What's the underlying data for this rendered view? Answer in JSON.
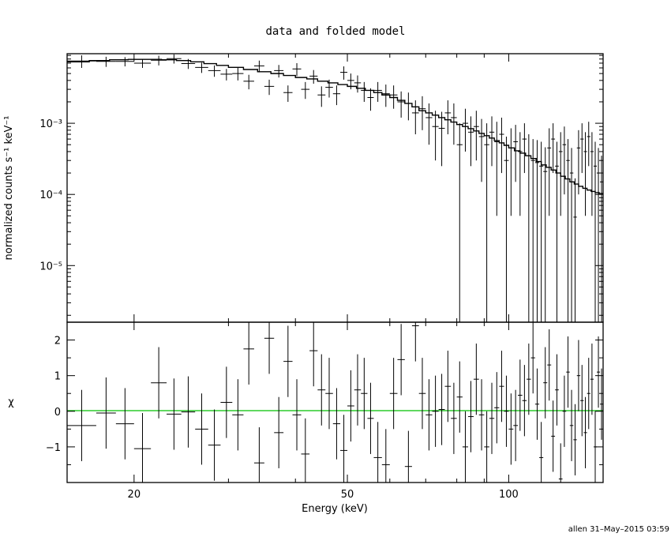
{
  "chart_data": [
    {
      "type": "scatter",
      "title": "data and folded model",
      "xlabel": "Energy (keV)",
      "ylabel": "normalized counts s⁻¹ keV⁻¹",
      "x_scale": "log",
      "y_scale": "log",
      "xlim": [
        15,
        150
      ],
      "ylim": [
        1.6e-06,
        0.0095
      ],
      "x_ticks": [
        {
          "value": 20,
          "label": "20"
        },
        {
          "value": 50,
          "label": "50"
        },
        {
          "value": 100,
          "label": "100"
        }
      ],
      "y_ticks": [
        {
          "value": 0.001,
          "label": "10⁻³"
        },
        {
          "value": 0.0001,
          "label": "10⁻⁴"
        },
        {
          "value": 1e-05,
          "label": "10⁻⁵"
        }
      ],
      "grid": false,
      "legend": "none",
      "series": [
        {
          "role": "data",
          "x_lo": [
            15.0,
            17.0,
            18.5,
            20.0,
            21.5,
            23.0,
            24.5,
            26.0,
            27.5,
            29.0,
            30.5,
            32.0,
            33.5,
            35.0,
            36.5,
            38.0,
            39.5,
            41.0,
            42.5,
            44.0,
            45.5,
            47.0,
            48.5,
            50.0,
            51.5,
            53.0,
            54.5,
            56.0,
            58.0,
            60.0,
            62.0,
            64.0,
            66.0,
            68.0,
            70.0,
            72.0,
            74.0,
            76.0,
            78.0,
            80.0,
            82.0,
            84.0,
            86.0,
            88.0,
            90.0,
            92.0,
            94.0,
            96.0,
            98.0,
            100.0,
            102.0,
            104.0,
            106.0,
            108.0,
            110.0,
            112.0,
            114.0,
            116.0,
            118.0,
            120.0,
            122.0,
            124.0,
            126.0,
            128.0,
            130.0,
            132.0,
            134.0,
            136.0,
            138.0,
            140.0,
            142.0,
            144.0,
            146.0,
            148.0
          ],
          "x_hi": [
            17.0,
            18.5,
            20.0,
            21.5,
            23.0,
            24.5,
            26.0,
            27.5,
            29.0,
            30.5,
            32.0,
            33.5,
            35.0,
            36.5,
            38.0,
            39.5,
            41.0,
            42.5,
            44.0,
            45.5,
            47.0,
            48.5,
            50.0,
            51.5,
            53.0,
            54.5,
            56.0,
            58.0,
            60.0,
            62.0,
            64.0,
            66.0,
            68.0,
            70.0,
            72.0,
            74.0,
            76.0,
            78.0,
            80.0,
            82.0,
            84.0,
            86.0,
            88.0,
            90.0,
            92.0,
            94.0,
            96.0,
            98.0,
            100.0,
            102.0,
            104.0,
            106.0,
            108.0,
            110.0,
            112.0,
            114.0,
            116.0,
            118.0,
            120.0,
            122.0,
            124.0,
            126.0,
            128.0,
            130.0,
            132.0,
            134.0,
            136.0,
            138.0,
            140.0,
            142.0,
            144.0,
            146.0,
            148.0,
            150.0
          ],
          "y": [
            0.0075,
            0.0074,
            0.0074,
            0.007,
            0.0077,
            0.0081,
            0.0069,
            0.0061,
            0.0055,
            0.0049,
            0.005,
            0.0039,
            0.0064,
            0.0033,
            0.0055,
            0.0027,
            0.0058,
            0.003,
            0.0046,
            0.0025,
            0.0032,
            0.0026,
            0.0052,
            0.004,
            0.0037,
            0.0029,
            0.0023,
            0.0029,
            0.0026,
            0.0025,
            0.002,
            0.0019,
            0.0014,
            0.0016,
            0.0012,
            0.0009,
            0.00085,
            0.0014,
            0.0012,
            0.0005,
            0.001,
            0.00075,
            0.0009,
            0.00065,
            0.0005,
            0.00075,
            0.00055,
            0.0007,
            0.0003,
            0.00045,
            0.00055,
            0.0004,
            0.0006,
            0.00035,
            0.0003,
            0.00028,
            0.00025,
            0.00021,
            0.00045,
            0.0006,
            0.00025,
            0.0004,
            0.0005,
            0.0003,
            0.0002,
            4.8e-05,
            0.00045,
            0.0006,
            0.0004,
            0.00065,
            0.0004,
            0.00025,
            0.0002,
            0.00015
          ],
          "y_err": [
            0.0015,
            0.0012,
            0.0011,
            0.001,
            0.0012,
            0.0012,
            0.0011,
            0.001,
            0.001,
            0.0009,
            0.001,
            0.0009,
            0.0012,
            0.0008,
            0.0011,
            0.0007,
            0.0012,
            0.0008,
            0.001,
            0.0008,
            0.0009,
            0.0008,
            0.0011,
            0.001,
            0.001,
            0.0009,
            0.0008,
            0.0009,
            0.0009,
            0.0009,
            0.0008,
            0.0008,
            0.0007,
            0.0008,
            0.0007,
            0.0006,
            0.0006,
            0.0007,
            0.0007,
            0.0005,
            0.0006,
            0.0005,
            0.0006,
            0.0005,
            0.0005,
            0.0005,
            0.0005,
            0.0005,
            0.00035,
            0.0004,
            0.0004,
            0.00035,
            0.0004,
            0.00035,
            0.0003,
            0.0003,
            0.0003,
            0.00025,
            0.0004,
            0.0004,
            0.0003,
            0.00035,
            0.0004,
            0.0003,
            0.00025,
            0.00012,
            0.00035,
            0.0004,
            0.00035,
            0.0004,
            0.00035,
            0.0003,
            0.00025,
            0.0002
          ]
        },
        {
          "role": "model",
          "x": [
            15.0,
            16.5,
            18.0,
            19.5,
            21.0,
            22.5,
            24.0,
            25.5,
            27.0,
            28.5,
            30.0,
            32.0,
            34.0,
            36.0,
            38.0,
            40.0,
            42.0,
            44.0,
            46.0,
            48.0,
            50.0,
            52.0,
            54.0,
            56.0,
            58.0,
            60.0,
            62.0,
            64.0,
            66.0,
            68.0,
            70.0,
            72.0,
            74.0,
            76.0,
            78.0,
            80.0,
            82.0,
            84.0,
            86.0,
            88.0,
            90.0,
            92.0,
            94.0,
            96.0,
            98.0,
            100.0,
            102.5,
            105.0,
            107.5,
            110.0,
            112.5,
            115.0,
            117.5,
            120.0,
            122.5,
            125.0,
            127.5,
            130.0,
            132.5,
            135.0,
            137.5,
            140.0,
            142.5,
            145.0,
            147.5,
            150.0
          ],
          "y": [
            0.0073,
            0.0076,
            0.0078,
            0.0079,
            0.0079,
            0.0078,
            0.0076,
            0.0073,
            0.0069,
            0.0065,
            0.0061,
            0.0057,
            0.0053,
            0.005,
            0.0047,
            0.0044,
            0.0042,
            0.0039,
            0.0037,
            0.0035,
            0.0033,
            0.0031,
            0.0029,
            0.0027,
            0.0025,
            0.0023,
            0.0021,
            0.0019,
            0.0017,
            0.0015,
            0.0014,
            0.0013,
            0.0012,
            0.00112,
            0.00104,
            0.00096,
            0.0009,
            0.00084,
            0.00078,
            0.00072,
            0.00067,
            0.00062,
            0.00057,
            0.00053,
            0.00049,
            0.00045,
            0.00041,
            0.00038,
            0.00035,
            0.00032,
            0.00029,
            0.00026,
            0.00024,
            0.00022,
            0.0002,
            0.00018,
            0.000165,
            0.00015,
            0.00014,
            0.00013,
            0.000122,
            0.000115,
            0.00011,
            0.000106,
            0.000103,
            0.0001
          ]
        }
      ]
    },
    {
      "type": "scatter",
      "ylabel": "χ",
      "xlabel": "Energy (keV)",
      "x_scale": "log",
      "xlim": [
        15,
        150
      ],
      "ylim": [
        -2.0,
        2.5
      ],
      "y_ticks": [
        {
          "value": 2,
          "label": "2"
        },
        {
          "value": 1,
          "label": "1"
        },
        {
          "value": 0,
          "label": "0"
        },
        {
          "value": -1,
          "label": "−1"
        }
      ],
      "reference_line": {
        "y": 0,
        "color": "#00c000"
      },
      "series": [
        {
          "role": "residuals",
          "x_lo": [
            15.0,
            17.0,
            18.5,
            20.0,
            21.5,
            23.0,
            24.5,
            26.0,
            27.5,
            29.0,
            30.5,
            32.0,
            33.5,
            35.0,
            36.5,
            38.0,
            39.5,
            41.0,
            42.5,
            44.0,
            45.5,
            47.0,
            48.5,
            50.0,
            51.5,
            53.0,
            54.5,
            56.0,
            58.0,
            60.0,
            62.0,
            64.0,
            66.0,
            68.0,
            70.0,
            72.0,
            74.0,
            76.0,
            78.0,
            80.0,
            82.0,
            84.0,
            86.0,
            88.0,
            90.0,
            92.0,
            94.0,
            96.0,
            98.0,
            100.0,
            102.0,
            104.0,
            106.0,
            108.0,
            110.0,
            112.0,
            114.0,
            116.0,
            118.0,
            120.0,
            122.0,
            124.0,
            126.0,
            128.0,
            130.0,
            132.0,
            134.0,
            136.0,
            138.0,
            140.0,
            142.0,
            144.0,
            146.0,
            148.0
          ],
          "x_hi": [
            17.0,
            18.5,
            20.0,
            21.5,
            23.0,
            24.5,
            26.0,
            27.5,
            29.0,
            30.5,
            32.0,
            33.5,
            35.0,
            36.5,
            38.0,
            39.5,
            41.0,
            42.5,
            44.0,
            45.5,
            47.0,
            48.5,
            50.0,
            51.5,
            53.0,
            54.5,
            56.0,
            58.0,
            60.0,
            62.0,
            64.0,
            66.0,
            68.0,
            70.0,
            72.0,
            74.0,
            76.0,
            78.0,
            80.0,
            82.0,
            84.0,
            86.0,
            88.0,
            90.0,
            92.0,
            94.0,
            96.0,
            98.0,
            100.0,
            102.0,
            104.0,
            106.0,
            108.0,
            110.0,
            112.0,
            114.0,
            116.0,
            118.0,
            120.0,
            122.0,
            124.0,
            126.0,
            128.0,
            130.0,
            132.0,
            134.0,
            136.0,
            138.0,
            140.0,
            142.0,
            144.0,
            146.0,
            148.0,
            150.0
          ],
          "y": [
            -0.4,
            -0.05,
            -0.35,
            -1.05,
            0.8,
            -0.08,
            -0.02,
            -0.5,
            -0.95,
            0.25,
            -0.1,
            1.75,
            -1.45,
            2.05,
            -0.6,
            1.4,
            -0.1,
            -1.2,
            1.7,
            0.6,
            0.5,
            -0.35,
            -1.1,
            0.15,
            0.6,
            0.5,
            -0.2,
            -1.3,
            -1.5,
            0.5,
            1.45,
            -1.55,
            2.4,
            0.5,
            -0.1,
            0.0,
            0.05,
            0.7,
            -0.2,
            0.4,
            -1.0,
            -0.15,
            0.9,
            -0.1,
            -1.0,
            -0.2,
            0.1,
            0.7,
            0.0,
            -0.5,
            -0.4,
            0.45,
            0.3,
            0.9,
            1.5,
            0.2,
            -1.3,
            0.8,
            1.3,
            -0.7,
            0.6,
            -1.9,
            0.0,
            1.1,
            -0.4,
            -0.8,
            1.0,
            0.3,
            -0.6,
            0.5,
            0.9,
            -1.0,
            1.1,
            0.2
          ],
          "y_err": [
            1.0,
            1.0,
            1.0,
            1.0,
            1.0,
            1.0,
            1.0,
            1.0,
            1.0,
            1.0,
            1.0,
            1.0,
            1.0,
            1.0,
            1.0,
            1.0,
            1.0,
            1.0,
            1.0,
            1.0,
            1.0,
            1.0,
            1.0,
            1.0,
            1.0,
            1.0,
            1.0,
            1.0,
            1.0,
            1.0,
            1.0,
            1.0,
            1.0,
            1.0,
            1.0,
            1.0,
            1.0,
            1.0,
            1.0,
            1.0,
            1.0,
            1.0,
            1.0,
            1.0,
            1.0,
            1.0,
            1.0,
            1.0,
            1.0,
            1.0,
            1.0,
            1.0,
            1.0,
            1.0,
            1.0,
            1.0,
            1.0,
            1.0,
            1.0,
            1.0,
            1.0,
            1.0,
            1.0,
            1.0,
            1.0,
            1.0,
            1.0,
            1.0,
            1.0,
            1.0,
            1.0,
            1.0,
            1.0,
            1.0
          ]
        }
      ]
    }
  ],
  "footer": {
    "text": "allen 31–May–2015 03:59"
  },
  "colors": {
    "axes": "#000000",
    "data": "#000000",
    "zero_line": "#00c000"
  }
}
